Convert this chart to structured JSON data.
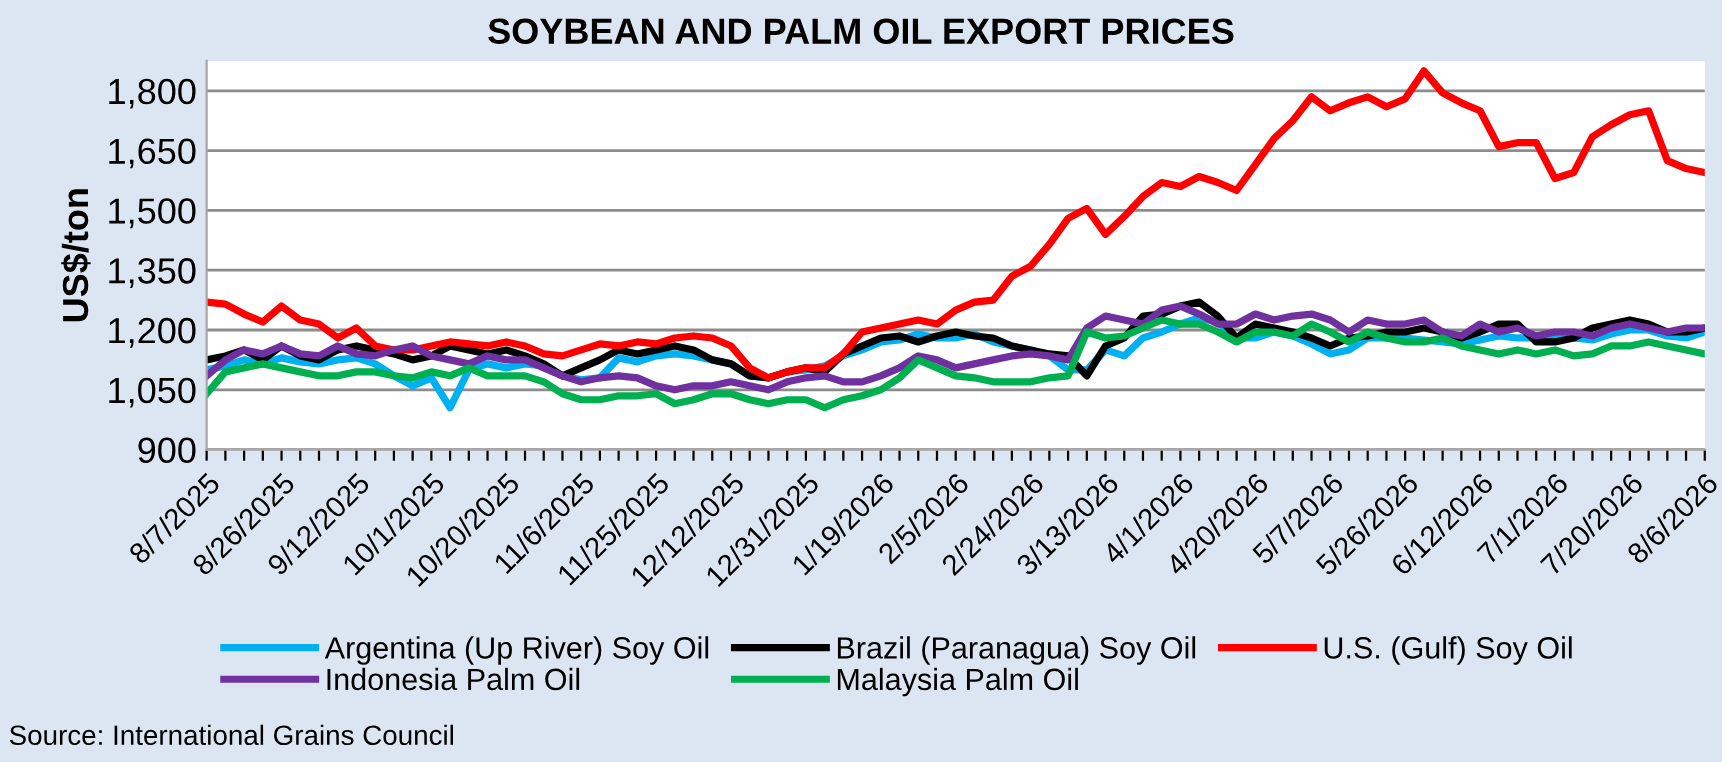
{
  "chart_data": {
    "type": "line",
    "title": "SOYBEAN AND PALM OIL EXPORT PRICES",
    "ylabel": "US$/ton",
    "categories": [
      "8/7/2025",
      null,
      null,
      null,
      "8/26/2025",
      null,
      null,
      null,
      "9/12/2025",
      null,
      null,
      null,
      "10/1/2025",
      null,
      null,
      null,
      "10/20/2025",
      null,
      null,
      null,
      "11/6/2025",
      null,
      null,
      null,
      "11/25/2025",
      null,
      null,
      null,
      "12/12/2025",
      null,
      null,
      null,
      "12/31/2025",
      null,
      null,
      null,
      "1/19/2026",
      null,
      null,
      null,
      "2/5/2026",
      null,
      null,
      null,
      "2/24/2026",
      null,
      null,
      null,
      "3/13/2026",
      null,
      null,
      null,
      "4/1/2026",
      null,
      null,
      null,
      "4/20/2026",
      null,
      null,
      null,
      "5/7/2026",
      null,
      null,
      null,
      "5/26/2026",
      null,
      null,
      null,
      "6/12/2026",
      null,
      null,
      null,
      "7/1/2026",
      null,
      null,
      null,
      "7/20/2026",
      null,
      null,
      null,
      "8/6/2026"
    ],
    "series": [
      {
        "name": "Argentina (Up River) Soy Oil",
        "color": "#00b0f0",
        "values": [
          1100,
          1110,
          1125,
          1115,
          1130,
          1120,
          1115,
          1125,
          1130,
          1115,
          1085,
          1060,
          1080,
          1005,
          1100,
          1115,
          1105,
          1115,
          1110,
          1085,
          1075,
          1080,
          1130,
          1120,
          1135,
          1140,
          1135,
          1125,
          1115,
          1085,
          1080,
          1095,
          1100,
          1110,
          1135,
          1150,
          1170,
          1175,
          1190,
          1180,
          1180,
          1190,
          1170,
          1160,
          1150,
          1135,
          1100,
          1100,
          1150,
          1135,
          1180,
          1195,
          1215,
          1230,
          1220,
          1180,
          1180,
          1195,
          1185,
          1165,
          1140,
          1150,
          1180,
          1180,
          1180,
          1175,
          1170,
          1165,
          1175,
          1185,
          1180,
          1180,
          1185,
          1180,
          1175,
          1190,
          1200,
          1200,
          1185,
          1180,
          1195
        ]
      },
      {
        "name": "Brazil (Paranagua) Soy Oil",
        "color": "#000000",
        "values": [
          1125,
          1135,
          1150,
          1125,
          1160,
          1135,
          1125,
          1150,
          1160,
          1150,
          1140,
          1125,
          1135,
          1160,
          1150,
          1140,
          1150,
          1135,
          1115,
          1085,
          1105,
          1125,
          1150,
          1140,
          1150,
          1160,
          1150,
          1125,
          1115,
          1085,
          1080,
          1095,
          1105,
          1095,
          1140,
          1160,
          1180,
          1185,
          1170,
          1185,
          1195,
          1185,
          1180,
          1160,
          1150,
          1140,
          1135,
          1085,
          1160,
          1180,
          1235,
          1240,
          1260,
          1270,
          1235,
          1180,
          1215,
          1205,
          1195,
          1180,
          1160,
          1180,
          1185,
          1195,
          1195,
          1205,
          1195,
          1180,
          1195,
          1215,
          1215,
          1170,
          1170,
          1180,
          1205,
          1215,
          1225,
          1215,
          1195,
          1195,
          1205
        ]
      },
      {
        "name": "U.S. (Gulf) Soy Oil",
        "color": "#ff0000",
        "values": [
          1270,
          1265,
          1240,
          1220,
          1260,
          1225,
          1215,
          1180,
          1205,
          1160,
          1150,
          1150,
          1160,
          1170,
          1165,
          1160,
          1170,
          1160,
          1140,
          1135,
          1150,
          1165,
          1160,
          1170,
          1165,
          1180,
          1185,
          1180,
          1160,
          1105,
          1080,
          1095,
          1105,
          1105,
          1140,
          1195,
          1205,
          1215,
          1225,
          1215,
          1250,
          1270,
          1275,
          1335,
          1360,
          1415,
          1480,
          1505,
          1440,
          1485,
          1535,
          1570,
          1560,
          1585,
          1570,
          1550,
          1615,
          1680,
          1725,
          1785,
          1750,
          1770,
          1785,
          1760,
          1780,
          1850,
          1795,
          1770,
          1750,
          1660,
          1670,
          1670,
          1580,
          1595,
          1685,
          1715,
          1740,
          1750,
          1625,
          1605,
          1595
        ]
      },
      {
        "name": "Indonesia Palm Oil",
        "color": "#7030a0",
        "values": [
          1085,
          1125,
          1150,
          1140,
          1160,
          1140,
          1135,
          1160,
          1140,
          1135,
          1150,
          1160,
          1135,
          1125,
          1115,
          1135,
          1125,
          1125,
          1105,
          1085,
          1070,
          1080,
          1085,
          1080,
          1060,
          1050,
          1060,
          1060,
          1070,
          1060,
          1050,
          1070,
          1080,
          1085,
          1070,
          1070,
          1085,
          1105,
          1135,
          1125,
          1105,
          1115,
          1125,
          1135,
          1140,
          1135,
          1125,
          1205,
          1235,
          1225,
          1215,
          1250,
          1260,
          1240,
          1215,
          1215,
          1240,
          1225,
          1235,
          1240,
          1225,
          1195,
          1225,
          1215,
          1215,
          1225,
          1195,
          1185,
          1215,
          1195,
          1205,
          1185,
          1195,
          1195,
          1185,
          1205,
          1215,
          1205,
          1195,
          1205,
          1205
        ]
      },
      {
        "name": "Malaysia Palm Oil",
        "color": "#00b050",
        "values": [
          1040,
          1095,
          1105,
          1115,
          1105,
          1095,
          1085,
          1085,
          1095,
          1095,
          1085,
          1080,
          1095,
          1085,
          1105,
          1085,
          1085,
          1085,
          1070,
          1040,
          1025,
          1025,
          1035,
          1035,
          1040,
          1015,
          1025,
          1040,
          1040,
          1025,
          1015,
          1025,
          1025,
          1005,
          1025,
          1035,
          1050,
          1080,
          1125,
          1105,
          1085,
          1080,
          1070,
          1070,
          1070,
          1080,
          1085,
          1195,
          1180,
          1185,
          1205,
          1225,
          1215,
          1215,
          1195,
          1170,
          1195,
          1195,
          1185,
          1215,
          1195,
          1170,
          1195,
          1180,
          1170,
          1170,
          1180,
          1160,
          1150,
          1140,
          1150,
          1140,
          1150,
          1135,
          1140,
          1160,
          1160,
          1170,
          1160,
          1150,
          1140
        ]
      }
    ],
    "ylim": [
      900,
      1875
    ],
    "yticks": [
      {
        "value": 900,
        "label": "900"
      },
      {
        "value": 1050,
        "label": "1,050"
      },
      {
        "value": 1200,
        "label": "1,200"
      },
      {
        "value": 1350,
        "label": "1,350"
      },
      {
        "value": 1500,
        "label": "1,500"
      },
      {
        "value": 1650,
        "label": "1,650"
      },
      {
        "value": 1800,
        "label": "1,800"
      }
    ],
    "grid": "y",
    "legend": "bottom",
    "marker": "none",
    "line_style": "solid",
    "annotations": [
      "Source: International Grains Council"
    ]
  }
}
